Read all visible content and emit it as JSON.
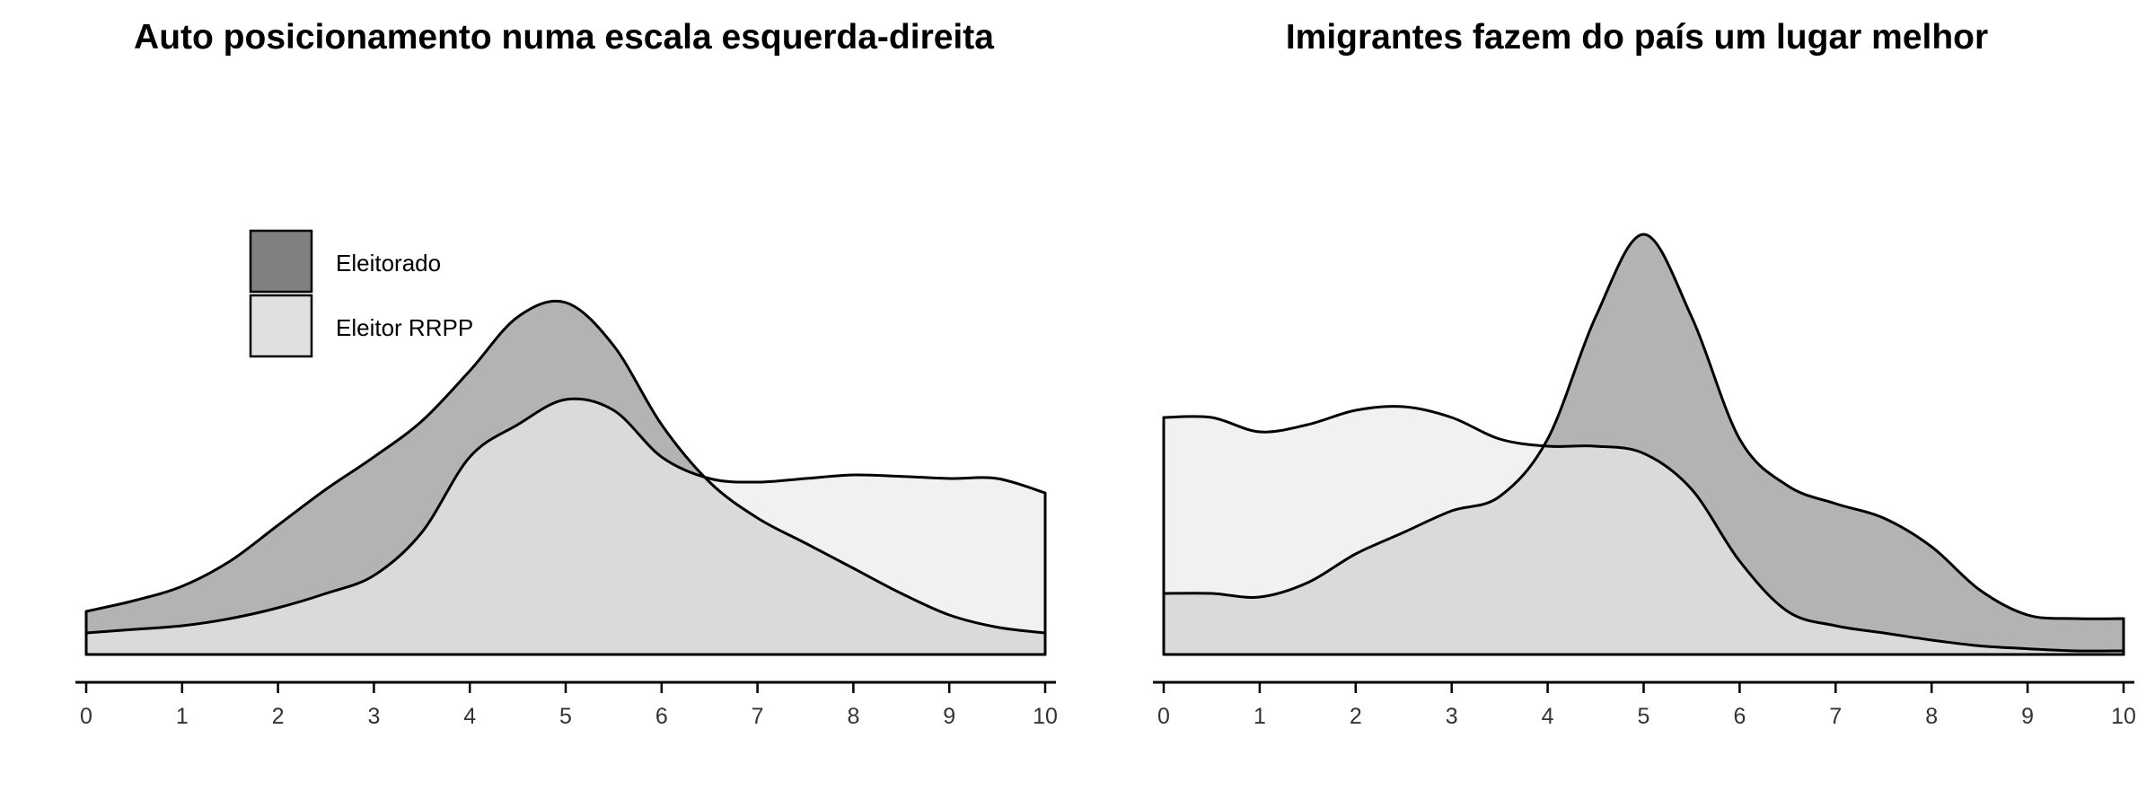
{
  "colors": {
    "eleitorado_fill": "#b3b3b3",
    "eleitor_rrpp_fill": "#ebebeb",
    "legend_eleitorado_fill": "#808080",
    "legend_eleitor_rrpp_fill": "#e0e0e0",
    "outline": "#000000",
    "axis": "#000000",
    "tick_text": "#333333"
  },
  "legend": {
    "position": "top-left",
    "items": [
      {
        "label": "Eleitorado",
        "color": "#808080"
      },
      {
        "label": "Eleitor RRPP",
        "color": "#e0e0e0"
      }
    ]
  },
  "chart_data": [
    {
      "type": "area",
      "title": "Auto posicionamento numa escala esquerda-direita",
      "xlabel": "",
      "ylabel": "",
      "xlim": [
        0,
        10
      ],
      "ylim": [
        0,
        0.5
      ],
      "grid": false,
      "x_ticks": [
        "0",
        "1",
        "2",
        "3",
        "4",
        "5",
        "6",
        "7",
        "8",
        "9",
        "10"
      ],
      "series": [
        {
          "name": "Eleitorado",
          "color": "#b3b3b3",
          "x": [
            0,
            0.5,
            1,
            1.5,
            2,
            2.5,
            3,
            3.5,
            4,
            4.5,
            5,
            5.5,
            6,
            6.5,
            7,
            7.5,
            8,
            8.5,
            9,
            9.5,
            10
          ],
          "y": [
            0.06,
            0.075,
            0.095,
            0.13,
            0.18,
            0.23,
            0.275,
            0.325,
            0.395,
            0.47,
            0.49,
            0.43,
            0.32,
            0.24,
            0.19,
            0.155,
            0.12,
            0.085,
            0.055,
            0.038,
            0.03
          ]
        },
        {
          "name": "Eleitor RRPP",
          "color": "#ebebeb",
          "x": [
            0,
            0.5,
            1,
            1.5,
            2,
            2.5,
            3,
            3.5,
            4,
            4.5,
            5,
            5.5,
            6,
            6.5,
            7,
            7.5,
            8,
            8.5,
            9,
            9.5,
            10
          ],
          "y": [
            0.03,
            0.035,
            0.04,
            0.05,
            0.065,
            0.085,
            0.11,
            0.17,
            0.275,
            0.32,
            0.355,
            0.34,
            0.275,
            0.245,
            0.24,
            0.245,
            0.25,
            0.248,
            0.245,
            0.245,
            0.225
          ]
        }
      ]
    },
    {
      "type": "area",
      "title": "Imigrantes fazem do país um lugar melhor",
      "xlabel": "",
      "ylabel": "",
      "xlim": [
        0,
        10
      ],
      "ylim": [
        0,
        0.5
      ],
      "grid": false,
      "x_ticks": [
        "0",
        "1",
        "2",
        "3",
        "4",
        "5",
        "6",
        "7",
        "8",
        "9",
        "10"
      ],
      "series": [
        {
          "name": "Eleitorado",
          "color": "#b3b3b3",
          "x": [
            0,
            0.5,
            1,
            1.5,
            2,
            2.5,
            3,
            3.5,
            4,
            4.5,
            5,
            5.5,
            6,
            6.5,
            7,
            7.5,
            8,
            8.5,
            9,
            9.5,
            10
          ],
          "y": [
            0.085,
            0.085,
            0.08,
            0.1,
            0.14,
            0.17,
            0.2,
            0.22,
            0.3,
            0.47,
            0.585,
            0.47,
            0.3,
            0.235,
            0.21,
            0.19,
            0.15,
            0.09,
            0.055,
            0.05,
            0.05
          ]
        },
        {
          "name": "Eleitor RRPP",
          "color": "#ebebeb",
          "x": [
            0,
            0.5,
            1,
            1.5,
            2,
            2.5,
            3,
            3.5,
            4,
            4.5,
            5,
            5.5,
            6,
            6.5,
            7,
            7.5,
            8,
            8.5,
            9,
            9.5,
            10
          ],
          "y": [
            0.33,
            0.33,
            0.31,
            0.32,
            0.34,
            0.345,
            0.33,
            0.3,
            0.29,
            0.29,
            0.28,
            0.23,
            0.13,
            0.06,
            0.04,
            0.03,
            0.02,
            0.012,
            0.008,
            0.005,
            0.005
          ]
        }
      ]
    }
  ]
}
